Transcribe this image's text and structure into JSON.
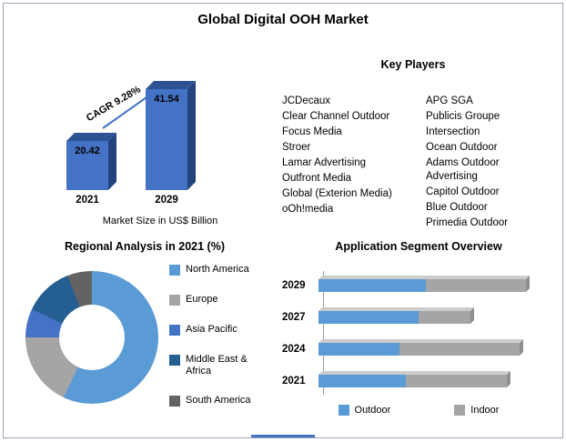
{
  "title": "Global Digital OOH Market",
  "key_players": {
    "title": "Key Players",
    "col1": [
      "JCDecaux",
      "Clear Channel Outdoor",
      "Focus Media",
      "Stroer",
      "Lamar Advertising",
      "Outfront Media",
      "Global (Exterion Media)",
      "oOh!media"
    ],
    "col2": [
      "APG SGA",
      "Publicis Groupe",
      "Intersection",
      "Ocean Outdoor",
      "Adams Outdoor Advertising",
      "Capitol Outdoor",
      "Blue Outdoor",
      "Primedia Outdoor"
    ]
  },
  "chart_data": [
    {
      "type": "bar",
      "title": "Market Size in US$ Billion",
      "categories": [
        "2021",
        "2029"
      ],
      "values": [
        20.42,
        41.54
      ],
      "annotation": "CAGR 9.28%",
      "ylim": [
        0,
        45
      ],
      "bar_color": "#4472C4",
      "grid": false
    },
    {
      "type": "pie",
      "donut": true,
      "title": "Regional Analysis in 2021 (%)",
      "labels": [
        "North America",
        "Europe",
        "Asia Pacific",
        "Middle East & Africa",
        "South America"
      ],
      "values": [
        57,
        18,
        7,
        12,
        6
      ],
      "colors": [
        "#5B9BD5",
        "#A5A5A5",
        "#4472C4",
        "#255E91",
        "#636363"
      ],
      "legend_position": "right"
    },
    {
      "type": "bar",
      "orientation": "horizontal",
      "stacked": true,
      "title": "Application Segment Overview",
      "categories": [
        "2029",
        "2027",
        "2024",
        "2021"
      ],
      "series": [
        {
          "name": "Outdoor",
          "color": "#5B9BD5",
          "values": [
            50,
            47,
            38,
            41
          ]
        },
        {
          "name": "Indoor",
          "color": "#A5A5A5",
          "values": [
            47,
            24,
            56,
            47
          ]
        }
      ],
      "xlim": [
        0,
        100
      ],
      "legend_position": "bottom"
    }
  ]
}
